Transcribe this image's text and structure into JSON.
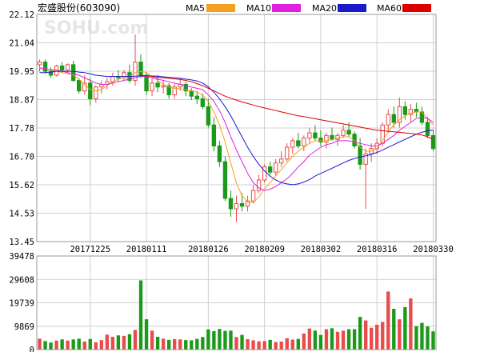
{
  "header": {
    "title": "宏盛股份",
    "code": "(603090)"
  },
  "watermark": "SOHU.com",
  "colors": {
    "up": "#e84c4c",
    "down": "#1a9a1a",
    "ma5": "#f5a020",
    "ma10": "#e020e0",
    "ma20": "#1a1acc",
    "ma60": "#dd0000",
    "grid": "#d0d0d0",
    "frame": "#999999"
  },
  "legend": [
    {
      "label": "MA5",
      "color": "#f5a020"
    },
    {
      "label": "MA10",
      "color": "#e020e0"
    },
    {
      "label": "MA20",
      "color": "#1a1acc"
    },
    {
      "label": "MA60",
      "color": "#dd0000"
    }
  ],
  "chart_data": [
    {
      "type": "candlestick",
      "price_ticks": [
        "22.12",
        "21.04",
        "19.95",
        "18.87",
        "17.78",
        "16.70",
        "15.62",
        "14.53",
        "13.45"
      ],
      "ylim": [
        13.45,
        22.12
      ],
      "grid": true,
      "date_labels": [
        {
          "label": "20171225",
          "index": 9
        },
        {
          "label": "20180111",
          "index": 19
        },
        {
          "label": "20180126",
          "index": 30
        },
        {
          "label": "20180209",
          "index": 40
        },
        {
          "label": "20180302",
          "index": 50
        },
        {
          "label": "20180316",
          "index": 60
        },
        {
          "label": "20180330",
          "index": 70
        }
      ],
      "ohlc": [
        [
          20.2,
          20.4,
          19.95,
          20.3
        ],
        [
          20.3,
          20.4,
          19.85,
          19.95
        ],
        [
          19.95,
          20.1,
          19.7,
          19.8
        ],
        [
          19.8,
          20.2,
          19.75,
          20.15
        ],
        [
          20.15,
          20.3,
          19.9,
          20.0
        ],
        [
          20.0,
          20.25,
          19.9,
          20.2
        ],
        [
          20.2,
          20.35,
          19.55,
          19.6
        ],
        [
          19.6,
          19.7,
          19.1,
          19.2
        ],
        [
          19.2,
          19.8,
          19.05,
          19.5
        ],
        [
          19.5,
          19.7,
          18.65,
          18.9
        ],
        [
          18.9,
          19.4,
          18.75,
          19.35
        ],
        [
          19.35,
          19.6,
          19.1,
          19.45
        ],
        [
          19.45,
          19.7,
          19.25,
          19.55
        ],
        [
          19.55,
          19.9,
          19.4,
          19.75
        ],
        [
          19.75,
          20.0,
          19.55,
          19.7
        ],
        [
          19.7,
          20.0,
          19.6,
          19.9
        ],
        [
          19.9,
          20.2,
          19.5,
          19.6
        ],
        [
          19.6,
          21.35,
          19.4,
          20.3
        ],
        [
          20.3,
          20.6,
          19.7,
          19.8
        ],
        [
          19.8,
          19.9,
          19.05,
          19.2
        ],
        [
          19.2,
          19.7,
          19.0,
          19.5
        ],
        [
          19.5,
          19.8,
          19.15,
          19.35
        ],
        [
          19.35,
          19.6,
          19.1,
          19.4
        ],
        [
          19.4,
          19.5,
          18.9,
          19.05
        ],
        [
          19.05,
          19.5,
          18.9,
          19.35
        ],
        [
          19.35,
          19.7,
          19.2,
          19.45
        ],
        [
          19.45,
          19.55,
          19.0,
          19.2
        ],
        [
          19.2,
          19.3,
          18.85,
          19.0
        ],
        [
          19.0,
          19.2,
          18.7,
          18.9
        ],
        [
          18.9,
          19.1,
          18.5,
          18.6
        ],
        [
          18.6,
          18.9,
          17.8,
          17.9
        ],
        [
          17.9,
          18.2,
          16.9,
          17.1
        ],
        [
          17.1,
          17.3,
          16.3,
          16.5
        ],
        [
          16.5,
          16.7,
          15.0,
          15.1
        ],
        [
          15.1,
          15.4,
          14.4,
          14.7
        ],
        [
          14.7,
          15.2,
          14.2,
          14.9
        ],
        [
          14.9,
          15.3,
          14.6,
          14.8
        ],
        [
          14.8,
          15.2,
          14.6,
          15.0
        ],
        [
          15.0,
          15.6,
          14.9,
          15.4
        ],
        [
          15.4,
          16.0,
          15.3,
          15.8
        ],
        [
          15.8,
          16.4,
          15.7,
          16.3
        ],
        [
          16.3,
          16.5,
          16.0,
          16.1
        ],
        [
          16.1,
          16.6,
          15.95,
          16.45
        ],
        [
          16.45,
          16.9,
          16.3,
          16.6
        ],
        [
          16.6,
          17.2,
          16.5,
          17.05
        ],
        [
          17.05,
          17.4,
          16.8,
          17.3
        ],
        [
          17.3,
          17.6,
          17.0,
          17.1
        ],
        [
          17.1,
          17.5,
          16.9,
          17.4
        ],
        [
          17.4,
          17.8,
          17.2,
          17.6
        ],
        [
          17.6,
          17.9,
          17.3,
          17.4
        ],
        [
          17.4,
          17.7,
          17.1,
          17.25
        ],
        [
          17.25,
          17.6,
          17.0,
          17.5
        ],
        [
          17.5,
          17.8,
          17.3,
          17.35
        ],
        [
          17.35,
          17.6,
          17.1,
          17.5
        ],
        [
          17.5,
          17.9,
          17.4,
          17.7
        ],
        [
          17.7,
          18.0,
          17.45,
          17.55
        ],
        [
          17.55,
          17.65,
          17.0,
          17.1
        ],
        [
          17.1,
          17.4,
          16.2,
          16.4
        ],
        [
          16.4,
          17.0,
          14.7,
          16.8
        ],
        [
          16.8,
          17.2,
          16.5,
          17.0
        ],
        [
          17.0,
          17.4,
          16.8,
          17.2
        ],
        [
          17.2,
          18.0,
          17.1,
          17.9
        ],
        [
          17.9,
          18.5,
          17.6,
          18.3
        ],
        [
          18.3,
          18.6,
          17.8,
          18.0
        ],
        [
          18.0,
          18.95,
          17.8,
          18.6
        ],
        [
          18.6,
          18.8,
          18.1,
          18.3
        ],
        [
          18.3,
          18.7,
          18.0,
          18.5
        ],
        [
          18.5,
          18.75,
          18.2,
          18.4
        ],
        [
          18.4,
          18.6,
          17.9,
          18.0
        ],
        [
          18.0,
          18.2,
          17.4,
          17.5
        ],
        [
          17.5,
          17.7,
          16.9,
          17.0
        ]
      ],
      "ma": {
        "MA5": [
          20.1,
          20.05,
          20.0,
          19.95,
          19.9,
          19.85,
          19.8,
          19.65,
          19.45,
          19.25,
          19.2,
          19.25,
          19.4,
          19.55,
          19.65,
          19.7,
          19.75,
          19.9,
          19.95,
          19.9,
          19.75,
          19.6,
          19.45,
          19.35,
          19.3,
          19.28,
          19.25,
          19.2,
          19.15,
          19.05,
          18.8,
          18.4,
          17.9,
          17.25,
          16.45,
          15.7,
          15.2,
          14.95,
          14.95,
          15.15,
          15.45,
          15.7,
          15.95,
          16.2,
          16.45,
          16.7,
          16.9,
          17.05,
          17.2,
          17.3,
          17.3,
          17.3,
          17.35,
          17.4,
          17.45,
          17.45,
          17.3,
          17.05,
          16.9,
          16.9,
          17.0,
          17.3,
          17.65,
          17.9,
          18.1,
          18.25,
          18.35,
          18.4,
          18.4,
          18.15,
          17.9
        ],
        "MA10": [
          20.05,
          20.05,
          20.0,
          20.0,
          19.95,
          19.9,
          19.85,
          19.8,
          19.7,
          19.6,
          19.5,
          19.45,
          19.45,
          19.5,
          19.55,
          19.6,
          19.65,
          19.7,
          19.75,
          19.75,
          19.7,
          19.65,
          19.6,
          19.55,
          19.5,
          19.45,
          19.4,
          19.35,
          19.3,
          19.25,
          19.05,
          18.8,
          18.45,
          18.0,
          17.45,
          16.95,
          16.5,
          16.05,
          15.7,
          15.5,
          15.4,
          15.45,
          15.55,
          15.7,
          15.85,
          16.05,
          16.3,
          16.5,
          16.75,
          16.9,
          17.05,
          17.15,
          17.2,
          17.3,
          17.3,
          17.3,
          17.25,
          17.2,
          17.15,
          17.1,
          17.1,
          17.2,
          17.35,
          17.5,
          17.7,
          17.85,
          18.0,
          18.15,
          18.2,
          18.15,
          18.0
        ],
        "MA20": [
          19.9,
          19.9,
          19.92,
          19.95,
          19.95,
          19.95,
          19.95,
          19.92,
          19.9,
          19.85,
          19.8,
          19.78,
          19.75,
          19.75,
          19.75,
          19.75,
          19.75,
          19.76,
          19.78,
          19.78,
          19.77,
          19.76,
          19.74,
          19.72,
          19.7,
          19.68,
          19.65,
          19.62,
          19.58,
          19.5,
          19.35,
          19.15,
          18.9,
          18.6,
          18.25,
          17.85,
          17.45,
          17.05,
          16.7,
          16.4,
          16.15,
          15.95,
          15.8,
          15.7,
          15.65,
          15.62,
          15.65,
          15.72,
          15.82,
          15.95,
          16.05,
          16.15,
          16.25,
          16.35,
          16.45,
          16.55,
          16.62,
          16.68,
          16.72,
          16.78,
          16.85,
          16.95,
          17.05,
          17.15,
          17.25,
          17.35,
          17.45,
          17.55,
          17.62,
          17.68,
          17.7
        ],
        "MA60": [
          null,
          null,
          null,
          null,
          null,
          null,
          null,
          null,
          null,
          null,
          null,
          null,
          null,
          null,
          null,
          null,
          null,
          null,
          19.8,
          19.78,
          19.75,
          19.72,
          19.7,
          19.68,
          19.66,
          19.64,
          19.6,
          19.55,
          19.48,
          19.4,
          19.3,
          19.2,
          19.1,
          19.0,
          18.92,
          18.85,
          18.78,
          18.72,
          18.66,
          18.6,
          18.55,
          18.5,
          18.45,
          18.4,
          18.35,
          18.3,
          18.25,
          18.22,
          18.18,
          18.14,
          18.1,
          18.06,
          18.02,
          17.98,
          17.94,
          17.9,
          17.86,
          17.82,
          17.78,
          17.74,
          17.7,
          17.68,
          17.66,
          17.64,
          17.62,
          17.6,
          17.58,
          17.55,
          17.52,
          17.45,
          17.35
        ]
      }
    },
    {
      "type": "bar",
      "name": "volume",
      "volume_ticks": [
        "39478",
        "29608",
        "19739",
        "9869",
        "0"
      ],
      "ylim": [
        0,
        39478
      ],
      "values": [
        4600,
        3600,
        3000,
        3800,
        4300,
        3800,
        4300,
        4600,
        3400,
        4500,
        3100,
        4000,
        6300,
        5400,
        6000,
        5800,
        6500,
        8300,
        29200,
        12800,
        8000,
        5400,
        4600,
        4100,
        4400,
        4300,
        4000,
        3900,
        4500,
        5300,
        8500,
        7800,
        8700,
        7900,
        8000,
        5300,
        6200,
        4400,
        3900,
        3500,
        3600,
        4100,
        3200,
        3400,
        4800,
        4200,
        4500,
        6800,
        8900,
        8000,
        6200,
        8600,
        9000,
        7500,
        8000,
        8600,
        8600,
        13800,
        12300,
        9200,
        10500,
        11700,
        24500,
        17200,
        12800,
        17900,
        21600,
        9900,
        11300,
        9800,
        7700
      ]
    }
  ]
}
